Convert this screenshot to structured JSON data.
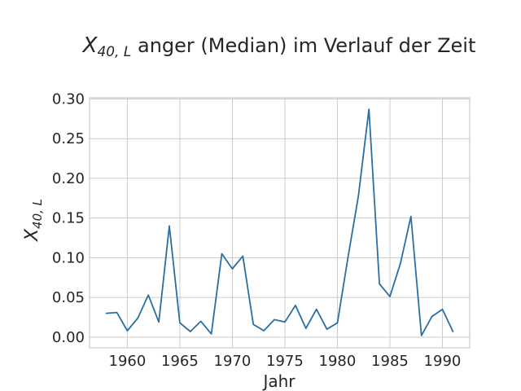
{
  "chart_data": {
    "type": "line",
    "title_var": "X",
    "title_sub": "40, L",
    "title_rest": " anger (Median) im Verlauf der Zeit",
    "xlabel": "Jahr",
    "ylabel_var": "X",
    "ylabel_sub": "40, L",
    "xlim": [
      1956.4,
      1992.6
    ],
    "ylim": [
      -0.0135,
      0.3015
    ],
    "xticks": [
      1960,
      1965,
      1970,
      1975,
      1980,
      1985,
      1990
    ],
    "yticks": [
      0.0,
      0.05,
      0.1,
      0.15,
      0.2,
      0.25,
      0.3
    ],
    "ytick_labels": [
      "0.00",
      "0.05",
      "0.10",
      "0.15",
      "0.20",
      "0.25",
      "0.30"
    ],
    "grid": true,
    "color": "#2a6fa3",
    "x": [
      1958,
      1959,
      1960,
      1961,
      1962,
      1963,
      1964,
      1965,
      1966,
      1967,
      1968,
      1969,
      1970,
      1971,
      1972,
      1973,
      1974,
      1975,
      1976,
      1977,
      1978,
      1979,
      1980,
      1981,
      1982,
      1983,
      1984,
      1985,
      1986,
      1987,
      1988,
      1989,
      1990,
      1991
    ],
    "y": [
      0.03,
      0.031,
      0.008,
      0.024,
      0.053,
      0.019,
      0.14,
      0.018,
      0.007,
      0.02,
      0.004,
      0.105,
      0.086,
      0.102,
      0.016,
      0.008,
      0.022,
      0.019,
      0.04,
      0.011,
      0.035,
      0.01,
      0.018,
      0.1,
      0.178,
      0.287,
      0.067,
      0.051,
      0.093,
      0.152,
      0.002,
      0.026,
      0.035,
      0.007
    ]
  }
}
